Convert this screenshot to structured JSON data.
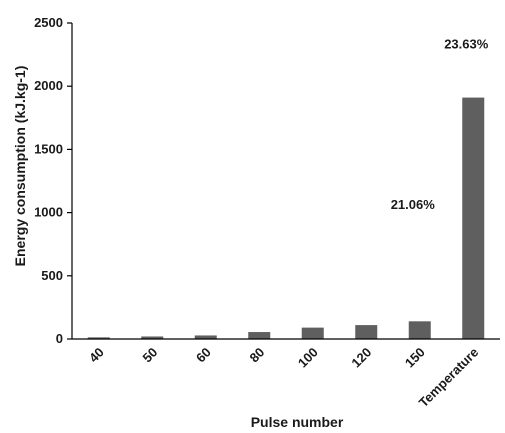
{
  "chart_data": {
    "type": "bar",
    "title": "",
    "xlabel": "Pulse number",
    "ylabel": "Energy consumption (kJ.kg-1)",
    "categories": [
      "40",
      "50",
      "60",
      "80",
      "100",
      "120",
      "150",
      "Temperature"
    ],
    "values": [
      13,
      20,
      28,
      55,
      90,
      110,
      140,
      1910
    ],
    "ylim": [
      0,
      2500
    ],
    "yticks": [
      "0",
      "500",
      "1000",
      "1500",
      "2000",
      "2500"
    ],
    "grid": false,
    "legend": "none",
    "bar_color": "#5f5f5f",
    "annotations": [
      {
        "text": "23.63%",
        "category": "Temperature",
        "y": 2300
      },
      {
        "text": "21.06%",
        "category": "150",
        "y": 1030
      }
    ]
  }
}
